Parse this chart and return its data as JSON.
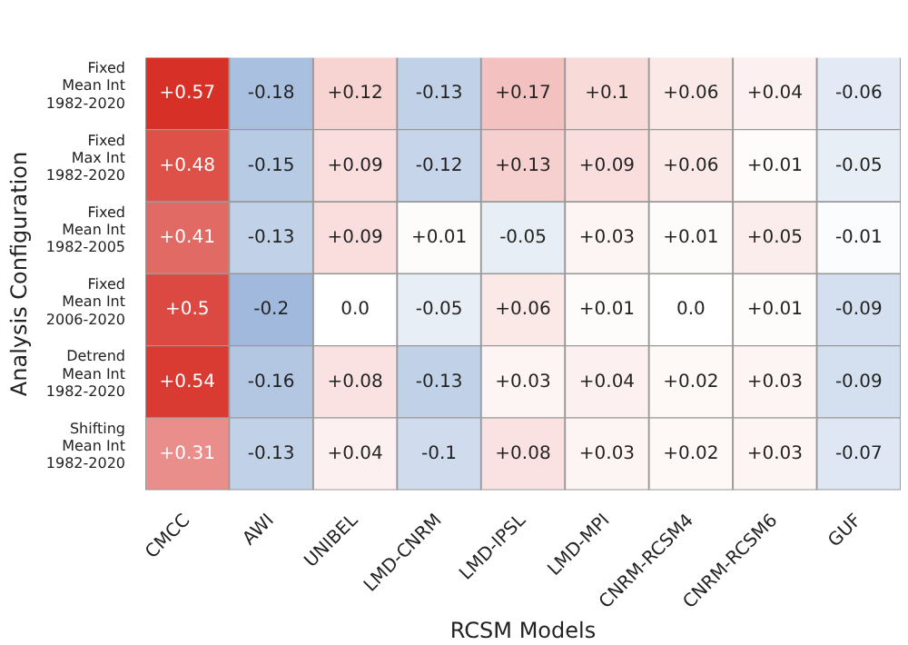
{
  "chart_data": {
    "type": "heatmap",
    "xlabel": "RCSM Models",
    "ylabel": "Analysis Configuration",
    "categories": [
      "CMCC",
      "AWI",
      "UNIBEL",
      "LMD-CNRM",
      "LMD-IPSL",
      "LMD-MPI",
      "CNRM-RCSM4",
      "CNRM-RCSM6",
      "GUF"
    ],
    "y_categories": [
      "Fixed\nMean Int\n1982-2020",
      "Fixed\nMax Int\n1982-2020",
      "Fixed\nMean Int\n1982-2005",
      "Fixed\nMean Int\n2006-2020",
      "Detrend\nMean Int\n1982-2020",
      "Shifting\nMean Int\n1982-2020"
    ],
    "cells": [
      [
        0.57,
        -0.18,
        0.12,
        -0.13,
        0.17,
        0.1,
        0.06,
        0.04,
        -0.06
      ],
      [
        0.48,
        -0.15,
        0.09,
        -0.12,
        0.13,
        0.09,
        0.06,
        0.01,
        -0.05
      ],
      [
        0.41,
        -0.13,
        0.09,
        0.01,
        -0.05,
        0.03,
        0.01,
        0.05,
        -0.01
      ],
      [
        0.5,
        -0.2,
        0.0,
        -0.05,
        0.06,
        0.01,
        0.0,
        0.01,
        -0.09
      ],
      [
        0.54,
        -0.16,
        0.08,
        -0.13,
        0.03,
        0.04,
        0.02,
        0.03,
        -0.09
      ],
      [
        0.31,
        -0.13,
        0.04,
        -0.1,
        0.08,
        0.03,
        0.02,
        0.03,
        -0.07
      ]
    ],
    "cell_labels": [
      [
        "+0.57",
        "-0.18",
        "+0.12",
        "-0.13",
        "+0.17",
        "+0.1",
        "+0.06",
        "+0.04",
        "-0.06"
      ],
      [
        "+0.48",
        "-0.15",
        "+0.09",
        "-0.12",
        "+0.13",
        "+0.09",
        "+0.06",
        "+0.01",
        "-0.05"
      ],
      [
        "+0.41",
        "-0.13",
        "+0.09",
        "+0.01",
        "-0.05",
        "+0.03",
        "+0.01",
        "+0.05",
        "-0.01"
      ],
      [
        "+0.5",
        "-0.2",
        "0.0",
        "-0.05",
        "+0.06",
        "+0.01",
        "0.0",
        "+0.01",
        "-0.09"
      ],
      [
        "+0.54",
        "-0.16",
        "+0.08",
        "-0.13",
        "+0.03",
        "+0.04",
        "+0.02",
        "+0.03",
        "-0.09"
      ],
      [
        "+0.31",
        "-0.13",
        "+0.04",
        "-0.1",
        "+0.08",
        "+0.03",
        "+0.02",
        "+0.03",
        "-0.07"
      ]
    ]
  }
}
